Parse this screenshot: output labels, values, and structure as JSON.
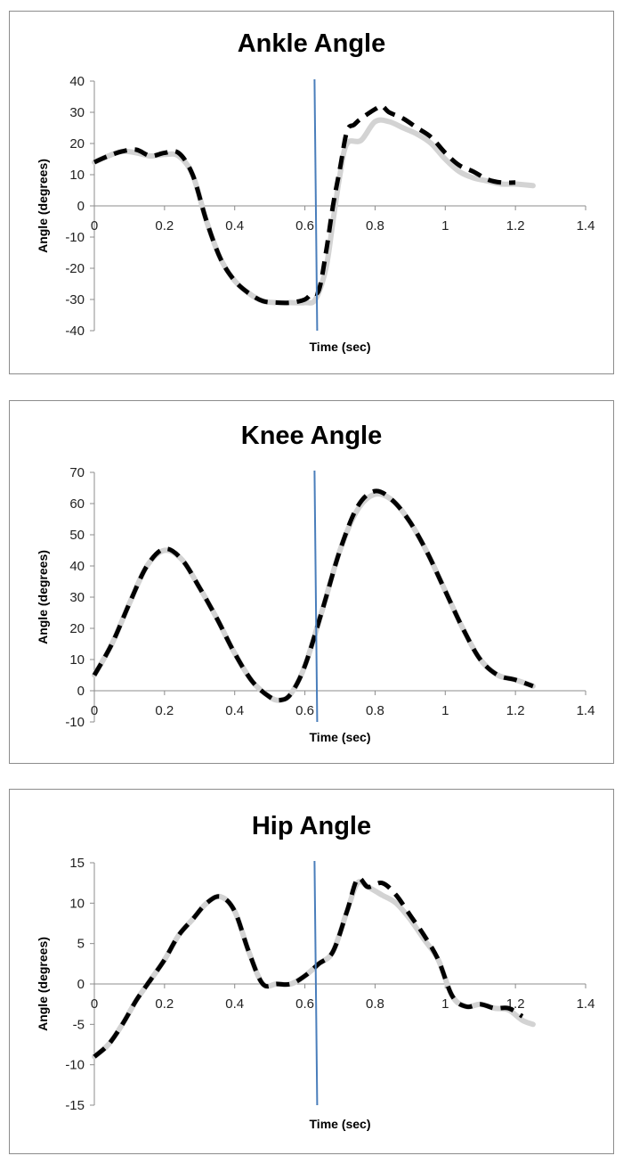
{
  "chart_data": [
    {
      "type": "line",
      "title": "Ankle Angle",
      "xlabel": "Time (sec)",
      "ylabel": "Angle (degrees)",
      "xlim": [
        0,
        1.4
      ],
      "ylim": [
        -40,
        40
      ],
      "xticks": [
        "0",
        "0.2",
        "0.4",
        "0.6",
        "0.8",
        "1",
        "1.2",
        "1.4"
      ],
      "yticks": [
        "40",
        "30",
        "20",
        "10",
        "0",
        "-10",
        "-20",
        "-30",
        "-40"
      ],
      "grid": false,
      "vline_x": 0.63,
      "series": [
        {
          "style": "solid-light-gray",
          "x": [
            0,
            0.04,
            0.08,
            0.12,
            0.16,
            0.2,
            0.24,
            0.28,
            0.32,
            0.36,
            0.4,
            0.44,
            0.48,
            0.52,
            0.56,
            0.6,
            0.63,
            0.66,
            0.68,
            0.7,
            0.72,
            0.76,
            0.8,
            0.84,
            0.88,
            0.92,
            0.96,
            1.0,
            1.04,
            1.08,
            1.12,
            1.16,
            1.2,
            1.25
          ],
          "y": [
            14,
            16,
            17.5,
            17,
            16,
            16.5,
            16,
            10,
            -5,
            -17,
            -24,
            -28,
            -30.5,
            -31,
            -31,
            -31,
            -30,
            -20,
            -5,
            10,
            20,
            21,
            27,
            27,
            25,
            23,
            20,
            15,
            11,
            9,
            8,
            7,
            7,
            6.5
          ]
        },
        {
          "style": "dashed-black",
          "x": [
            0,
            0.04,
            0.08,
            0.12,
            0.16,
            0.2,
            0.24,
            0.28,
            0.32,
            0.36,
            0.4,
            0.44,
            0.48,
            0.52,
            0.56,
            0.6,
            0.62,
            0.64,
            0.66,
            0.68,
            0.7,
            0.72,
            0.74,
            0.76,
            0.8,
            0.82,
            0.84,
            0.88,
            0.92,
            0.96,
            1.0,
            1.04,
            1.08,
            1.12,
            1.16,
            1.2
          ],
          "y": [
            14,
            16,
            17.5,
            18,
            16,
            17,
            17,
            10,
            -5,
            -17,
            -24,
            -28,
            -30.5,
            -31,
            -31,
            -30,
            -28,
            -27,
            -15,
            0,
            12,
            24,
            26,
            28,
            31,
            32,
            30,
            28,
            25,
            22,
            17,
            13,
            11,
            8.5,
            7.5,
            7.5
          ]
        }
      ]
    },
    {
      "type": "line",
      "title": "Knee Angle",
      "xlabel": "Time (sec)",
      "ylabel": "Angle (degrees)",
      "xlim": [
        0,
        1.4
      ],
      "ylim": [
        -10,
        70
      ],
      "xticks": [
        "0",
        "0.2",
        "0.4",
        "0.6",
        "0.8",
        "1",
        "1.2",
        "1.4"
      ],
      "yticks": [
        "70",
        "60",
        "50",
        "40",
        "30",
        "20",
        "10",
        "0",
        "-10"
      ],
      "grid": false,
      "vline_x": 0.63,
      "series": [
        {
          "style": "solid-light-gray",
          "x": [
            0,
            0.05,
            0.1,
            0.15,
            0.2,
            0.25,
            0.3,
            0.35,
            0.4,
            0.45,
            0.5,
            0.53,
            0.56,
            0.6,
            0.65,
            0.7,
            0.75,
            0.8,
            0.85,
            0.9,
            0.95,
            1.0,
            1.05,
            1.1,
            1.15,
            1.2,
            1.25
          ],
          "y": [
            5,
            15,
            28,
            40,
            45,
            42,
            33,
            23,
            12,
            3,
            -2,
            -3,
            -1,
            8,
            26,
            45,
            58,
            63,
            61,
            54,
            44,
            32,
            20,
            10,
            5,
            3.5,
            1.5
          ]
        },
        {
          "style": "dashed-black",
          "x": [
            0,
            0.05,
            0.1,
            0.15,
            0.2,
            0.25,
            0.3,
            0.35,
            0.4,
            0.45,
            0.5,
            0.53,
            0.56,
            0.6,
            0.65,
            0.7,
            0.75,
            0.8,
            0.85,
            0.9,
            0.95,
            1.0,
            1.05,
            1.1,
            1.15,
            1.2,
            1.25
          ],
          "y": [
            5,
            15,
            28,
            40,
            45.5,
            42,
            33,
            23,
            12,
            3,
            -2,
            -3,
            -1,
            8,
            26,
            45,
            59,
            64,
            61,
            54,
            44,
            32,
            20,
            10,
            5,
            3.5,
            1.5
          ]
        }
      ]
    },
    {
      "type": "line",
      "title": "Hip Angle",
      "xlabel": "Time (sec)",
      "ylabel": "Angle (degrees)",
      "xlim": [
        0,
        1.4
      ],
      "ylim": [
        -15,
        15
      ],
      "xticks": [
        "0",
        "0.2",
        "0.4",
        "0.6",
        "0.8",
        "1",
        "1.2",
        "1.4"
      ],
      "yticks": [
        "15",
        "10",
        "5",
        "0",
        "-5",
        "-10",
        "-15"
      ],
      "grid": false,
      "vline_x": 0.63,
      "series": [
        {
          "style": "solid-light-gray",
          "x": [
            0,
            0.04,
            0.08,
            0.12,
            0.16,
            0.2,
            0.24,
            0.28,
            0.32,
            0.36,
            0.4,
            0.44,
            0.48,
            0.52,
            0.56,
            0.6,
            0.64,
            0.68,
            0.72,
            0.75,
            0.78,
            0.82,
            0.86,
            0.9,
            0.94,
            0.98,
            1.02,
            1.06,
            1.1,
            1.14,
            1.18,
            1.22,
            1.25
          ],
          "y": [
            -9,
            -7.5,
            -5,
            -2,
            0.5,
            3,
            6,
            8,
            10,
            10.8,
            9,
            4,
            0,
            0,
            0,
            1,
            2.5,
            4,
            9,
            12.5,
            12,
            11,
            10,
            8,
            5.5,
            3,
            -1.5,
            -2.8,
            -2.5,
            -3,
            -3.2,
            -4.5,
            -5
          ]
        },
        {
          "style": "dashed-black",
          "x": [
            0,
            0.04,
            0.08,
            0.12,
            0.16,
            0.2,
            0.24,
            0.28,
            0.32,
            0.36,
            0.4,
            0.44,
            0.48,
            0.52,
            0.56,
            0.6,
            0.64,
            0.68,
            0.72,
            0.75,
            0.78,
            0.82,
            0.86,
            0.9,
            0.94,
            0.98,
            1.02,
            1.06,
            1.1,
            1.14,
            1.18,
            1.22
          ],
          "y": [
            -9,
            -7.5,
            -5,
            -2,
            0.5,
            3,
            6,
            8,
            10,
            10.8,
            9,
            4,
            0,
            0,
            0,
            1,
            2.5,
            4,
            9,
            13,
            12,
            12.5,
            11,
            8.5,
            6,
            3,
            -1.5,
            -2.8,
            -2.5,
            -3,
            -3,
            -4
          ]
        }
      ]
    }
  ]
}
